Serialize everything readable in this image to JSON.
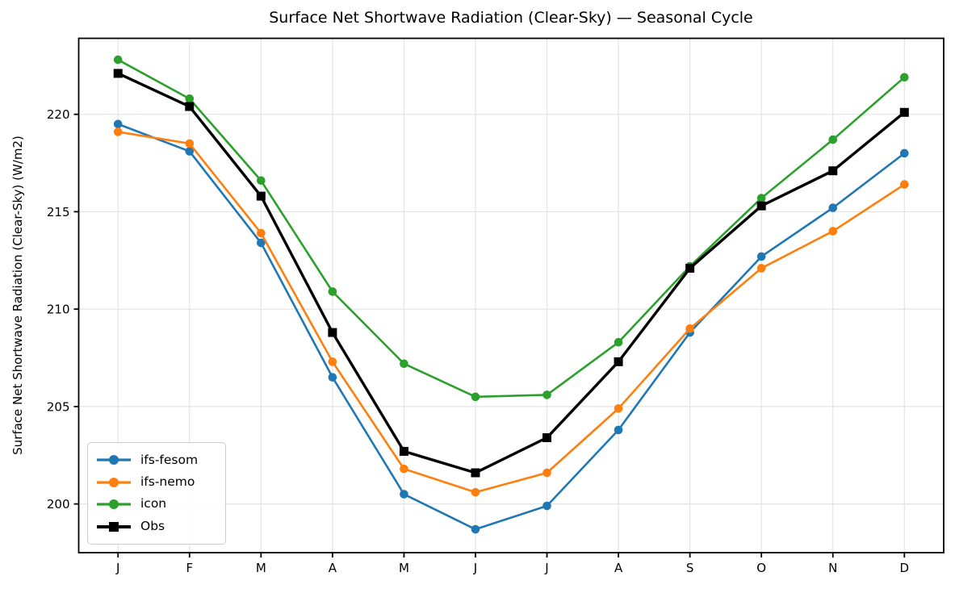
{
  "chart_data": {
    "type": "line",
    "title": "Surface Net Shortwave Radiation (Clear-Sky) — Seasonal Cycle",
    "ylabel": "Surface Net Shortwave Radiation (Clear-Sky) (W/m2)",
    "xlabel": "",
    "categories": [
      "J",
      "F",
      "M",
      "A",
      "M",
      "J",
      "J",
      "A",
      "S",
      "O",
      "N",
      "D"
    ],
    "y_ticks": [
      200,
      205,
      210,
      215,
      220
    ],
    "ylim": [
      197.5,
      223.9
    ],
    "grid": true,
    "grid_color": "#e4e4e4",
    "legend_position": "lower-left",
    "series": [
      {
        "name": "ifs-fesom",
        "color": "#1f77b4",
        "marker": "circle",
        "line_width": 2.6,
        "values": [
          219.5,
          218.1,
          213.4,
          206.5,
          200.5,
          198.7,
          199.9,
          203.8,
          208.8,
          212.7,
          215.2,
          218.0
        ]
      },
      {
        "name": "ifs-nemo",
        "color": "#ff7f0e",
        "marker": "circle",
        "line_width": 2.6,
        "values": [
          219.1,
          218.5,
          213.9,
          207.3,
          201.8,
          200.6,
          201.6,
          204.9,
          209.0,
          212.1,
          214.0,
          216.4
        ]
      },
      {
        "name": "icon",
        "color": "#2ca02c",
        "marker": "circle",
        "line_width": 2.6,
        "values": [
          222.8,
          220.8,
          216.6,
          210.9,
          207.2,
          205.5,
          205.6,
          208.3,
          212.2,
          215.7,
          218.7,
          221.9
        ]
      },
      {
        "name": "Obs",
        "color": "#000000",
        "marker": "square",
        "line_width": 3.4,
        "values": [
          222.1,
          220.4,
          215.8,
          208.8,
          202.7,
          201.6,
          203.4,
          207.3,
          212.1,
          215.3,
          217.1,
          220.1
        ]
      }
    ]
  }
}
